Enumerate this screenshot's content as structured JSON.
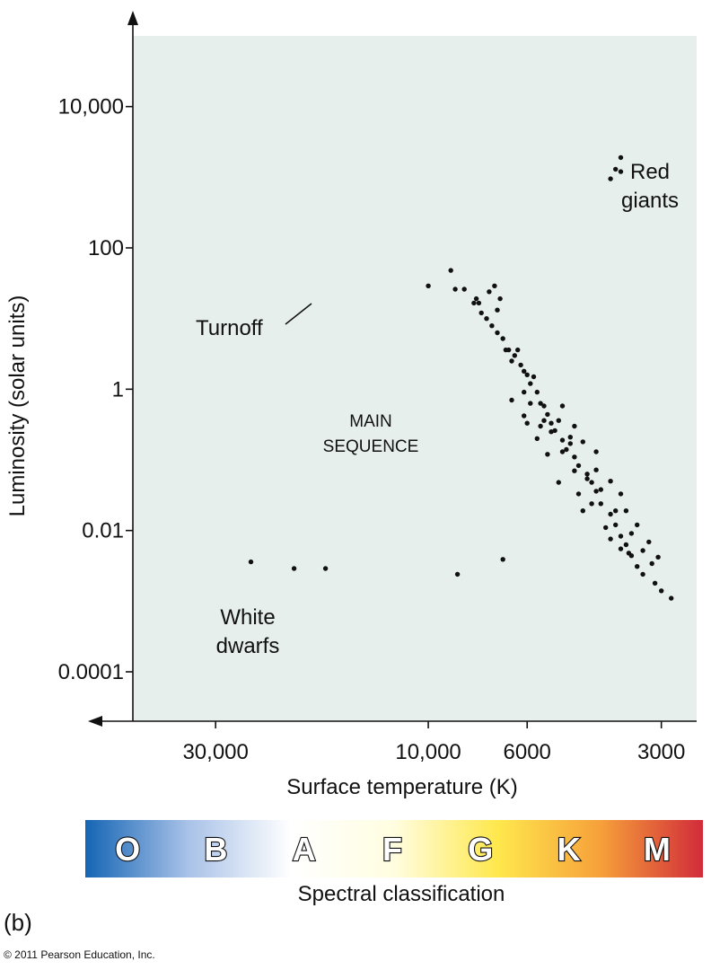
{
  "chart_data": {
    "type": "scatter",
    "title": "",
    "xlabel": "Surface temperature (K)",
    "ylabel": "Luminosity (solar units)",
    "x_scale": "log-reversed",
    "y_scale": "log",
    "xlim": [
      46000,
      2500
    ],
    "ylim": [
      2e-05,
      100000
    ],
    "x_ticks": [
      {
        "value": 30000,
        "label": "30,000"
      },
      {
        "value": 10000,
        "label": "10,000"
      },
      {
        "value": 6000,
        "label": "6000"
      },
      {
        "value": 3000,
        "label": "3000"
      }
    ],
    "y_ticks": [
      {
        "value": 0.0001,
        "label": "0.0001"
      },
      {
        "value": 0.01,
        "label": "0.01"
      },
      {
        "value": 1,
        "label": "1"
      },
      {
        "value": 100,
        "label": "100"
      },
      {
        "value": 10000,
        "label": "10,000"
      }
    ],
    "series": [
      {
        "name": "Main sequence",
        "points": [
          [
            10000,
            29
          ],
          [
            8700,
            26
          ],
          [
            8300,
            26
          ],
          [
            7900,
            16.6
          ],
          [
            7800,
            19.1
          ],
          [
            7700,
            16.6
          ],
          [
            8900,
            48
          ],
          [
            7300,
            24
          ],
          [
            7100,
            29
          ],
          [
            6900,
            19.1
          ],
          [
            7000,
            13.2
          ],
          [
            7600,
            12
          ],
          [
            7400,
            10
          ],
          [
            7200,
            7.9
          ],
          [
            7000,
            6.3
          ],
          [
            6800,
            5.2
          ],
          [
            6600,
            3.6
          ],
          [
            6400,
            3.0
          ],
          [
            6200,
            2.2
          ],
          [
            6000,
            1.6
          ],
          [
            5900,
            1.2
          ],
          [
            5700,
            0.91
          ],
          [
            5600,
            0.63
          ],
          [
            5400,
            0.44
          ],
          [
            5300,
            0.33
          ],
          [
            5200,
            0.26
          ],
          [
            5000,
            0.19
          ],
          [
            4900,
            0.14
          ],
          [
            4700,
            0.11
          ],
          [
            4600,
            0.083
          ],
          [
            4400,
            0.063
          ],
          [
            4300,
            0.048
          ],
          [
            4200,
            0.036
          ],
          [
            4100,
            0.024
          ],
          [
            3900,
            0.017
          ],
          [
            3800,
            0.012
          ],
          [
            3700,
            0.0083
          ],
          [
            3600,
            0.0063
          ],
          [
            3500,
            0.0044
          ],
          [
            3400,
            0.0031
          ],
          [
            3300,
            0.0024
          ],
          [
            3100,
            0.0018
          ],
          [
            3000,
            0.0014
          ],
          [
            2850,
            0.0011
          ],
          [
            6700,
            3.6
          ],
          [
            6300,
            3.6
          ],
          [
            6100,
            1.8
          ],
          [
            5800,
            1.5
          ],
          [
            5500,
            0.58
          ],
          [
            5100,
            0.36
          ],
          [
            4800,
            0.21
          ],
          [
            4500,
            0.18
          ],
          [
            4200,
            0.072
          ],
          [
            3900,
            0.05
          ],
          [
            3700,
            0.033
          ],
          [
            3600,
            0.019
          ],
          [
            3400,
            0.012
          ],
          [
            3200,
            0.0069
          ],
          [
            3050,
            0.0042
          ],
          [
            6500,
            2.5
          ],
          [
            6100,
            0.91
          ],
          [
            5900,
            0.63
          ],
          [
            5600,
            0.3
          ],
          [
            5300,
            0.25
          ],
          [
            5000,
            0.13
          ],
          [
            4700,
            0.07
          ],
          [
            4400,
            0.054
          ],
          [
            4100,
            0.038
          ],
          [
            3800,
            0.019
          ],
          [
            3500,
            0.0091
          ],
          [
            3300,
            0.0052
          ],
          [
            3150,
            0.0034
          ],
          [
            6000,
            0.33
          ],
          [
            5700,
            0.2
          ],
          [
            5400,
            0.12
          ],
          [
            4600,
            0.033
          ],
          [
            4300,
            0.024
          ],
          [
            3900,
            0.0076
          ],
          [
            3700,
            0.0055
          ],
          [
            3550,
            0.0048
          ],
          [
            5100,
            0.048
          ],
          [
            4500,
            0.019
          ],
          [
            4000,
            0.011
          ],
          [
            4700,
            0.3
          ],
          [
            6500,
            0.7
          ],
          [
            6100,
            0.42
          ],
          [
            5500,
            0.36
          ],
          [
            5000,
            0.58
          ],
          [
            4800,
            0.17
          ],
          [
            4200,
            0.13
          ]
        ]
      },
      {
        "name": "Red giants",
        "points": [
          [
            3800,
            1300
          ],
          [
            3900,
            950
          ],
          [
            3700,
            1900
          ],
          [
            3700,
            1200
          ]
        ]
      },
      {
        "name": "White dwarfs",
        "points": [
          [
            25000,
            0.0036
          ],
          [
            20000,
            0.0029
          ],
          [
            17000,
            0.0029
          ],
          [
            8600,
            0.0024
          ],
          [
            6800,
            0.0039
          ]
        ]
      }
    ],
    "annotations": [
      {
        "text_lines": [
          "Red",
          "giants"
        ]
      },
      {
        "text_lines": [
          "Turnoff"
        ]
      },
      {
        "text_lines": [
          "MAIN",
          "SEQUENCE"
        ]
      },
      {
        "text_lines": [
          "White",
          "dwarfs"
        ]
      }
    ],
    "grid": false,
    "legend": "none"
  },
  "spectral_bar": {
    "letters": [
      "O",
      "B",
      "A",
      "F",
      "G",
      "K",
      "M"
    ],
    "label": "Spectral classification",
    "colors": [
      "#1565b4",
      "#a9c2e8",
      "#ffffff",
      "#fffde0",
      "#ffe84d",
      "#f6a13a",
      "#d22b3a"
    ]
  },
  "colors": {
    "plot_background": "#e6efec",
    "points": "#111111"
  },
  "caption": "(b)",
  "copyright": "© 2011 Pearson Education, Inc."
}
